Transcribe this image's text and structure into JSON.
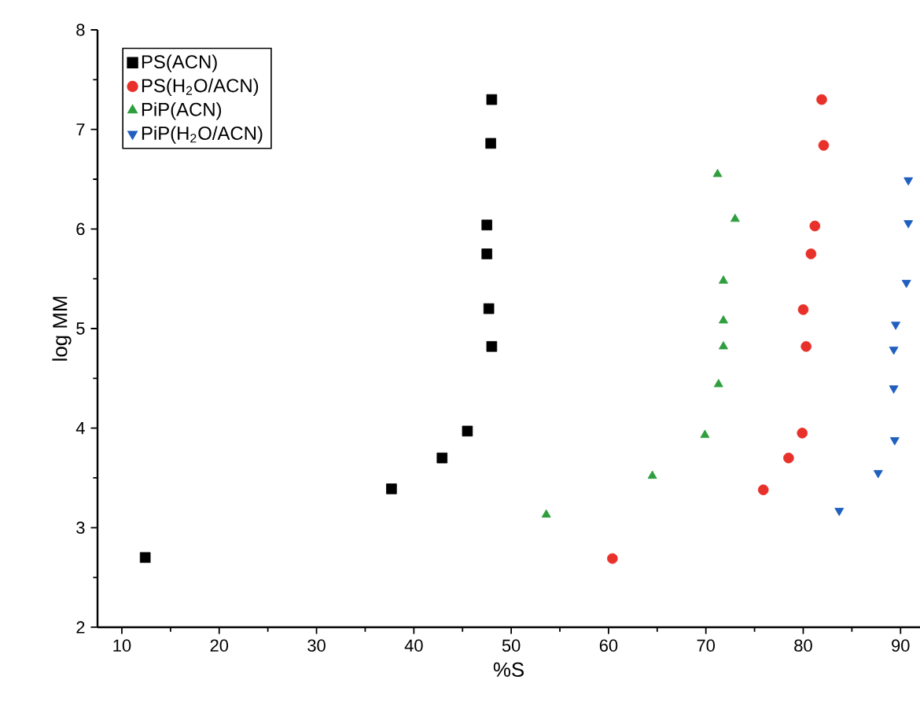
{
  "chart_data": {
    "type": "scatter",
    "xlabel": "%S",
    "ylabel": "log MM",
    "xlim": [
      7.5,
      92
    ],
    "ylim": [
      2,
      8
    ],
    "xticks": [
      10,
      20,
      30,
      40,
      50,
      60,
      70,
      80,
      90
    ],
    "yticks": [
      2,
      3,
      4,
      5,
      6,
      7,
      8
    ],
    "grid": false,
    "legend": "top left",
    "series": [
      {
        "name": "PS(ACN)",
        "color": "#000000",
        "marker": "square",
        "x": [
          12.4,
          37.7,
          42.9,
          45.5,
          48.0,
          47.9,
          47.5,
          47.5,
          47.7,
          48.0
        ],
        "values": [
          2.7,
          3.39,
          3.7,
          3.97,
          7.3,
          6.86,
          6.04,
          5.75,
          5.2,
          4.82
        ]
      },
      {
        "name": "PS(H$_{2}$O/ACN)",
        "color": "#e8312a",
        "marker": "circle",
        "x": [
          81.9,
          82.1,
          81.2,
          80.8,
          80.0,
          80.3,
          79.9,
          78.5,
          75.9,
          60.4
        ],
        "values": [
          7.3,
          6.84,
          6.03,
          5.75,
          5.19,
          4.82,
          3.95,
          3.7,
          3.38,
          2.69
        ]
      },
      {
        "name": "PiP(ACN)",
        "color": "#2e9e3e",
        "marker": "triangle",
        "x": [
          71.2,
          73.0,
          71.8,
          71.8,
          71.8,
          71.3,
          69.9,
          64.5,
          53.6
        ],
        "values": [
          6.55,
          6.1,
          5.48,
          5.08,
          4.82,
          4.44,
          3.93,
          3.52,
          3.13
        ]
      },
      {
        "name": "PiP(H$_{2}$O/ACN)",
        "color": "#1f5fbf",
        "marker": "triangle-down",
        "x": [
          90.8,
          90.8,
          90.6,
          89.5,
          89.3,
          89.3,
          89.4,
          87.7,
          83.7
        ],
        "values": [
          6.49,
          6.06,
          5.46,
          5.04,
          4.79,
          4.4,
          3.88,
          3.55,
          3.17
        ]
      }
    ]
  }
}
